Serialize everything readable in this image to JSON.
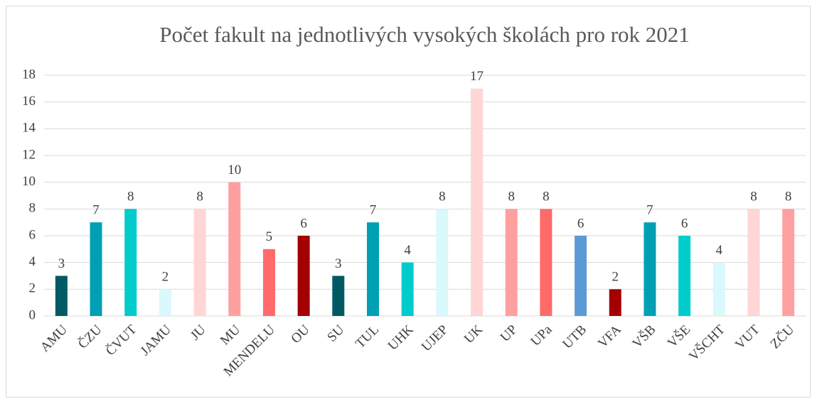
{
  "chart_data": {
    "type": "bar",
    "title": "Počet fakult na jednotlivých vysokých školách pro rok 2021",
    "categories": [
      "AMU",
      "ČZU",
      "ČVUT",
      "JAMU",
      "JU",
      "MU",
      "MENDELU",
      "OU",
      "SU",
      "TUL",
      "UHK",
      "UJEP",
      "UK",
      "UP",
      "UPa",
      "UTB",
      "VFA",
      "VŠB",
      "VŠE",
      "VŠCHT",
      "VUT",
      "ZČU"
    ],
    "values": [
      3,
      7,
      8,
      2,
      8,
      10,
      5,
      6,
      3,
      7,
      4,
      8,
      17,
      8,
      8,
      6,
      2,
      7,
      6,
      4,
      8,
      8
    ],
    "colors": [
      "#005a64",
      "#00a0b4",
      "#00cccc",
      "#d9f9fc",
      "#ffd5d5",
      "#ffa0a0",
      "#ff6a6a",
      "#a50000",
      "#005a64",
      "#00a0b4",
      "#00cccc",
      "#d9f9fc",
      "#ffd5d5",
      "#ffa0a0",
      "#ff6a6a",
      "#5b9bd5",
      "#a50000",
      "#00a0b4",
      "#00cccc",
      "#d9f9fc",
      "#ffd5d5",
      "#ffa0a0"
    ],
    "ylim": [
      0,
      18
    ],
    "yticks": [
      0,
      2,
      4,
      6,
      8,
      10,
      12,
      14,
      16,
      18
    ],
    "grid": true
  }
}
